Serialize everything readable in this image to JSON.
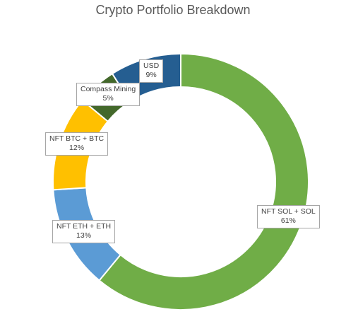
{
  "chart_data": {
    "type": "pie",
    "variant": "donut",
    "title": "Crypto Portfolio Breakdown",
    "categories": [
      "NFT SOL + SOL",
      "NFT ETH + ETH",
      "NFT BTC + BTC",
      "Compass Mining",
      "USD"
    ],
    "values": [
      61,
      13,
      12,
      5,
      9
    ],
    "value_labels": [
      "61%",
      "13%",
      "12%",
      "5%",
      "9%"
    ],
    "colors": [
      "#70ad47",
      "#5b9bd5",
      "#ffc000",
      "#43682b",
      "#255e91"
    ],
    "legend": "none",
    "data_labels": "callout boxes with category name and percentage"
  }
}
